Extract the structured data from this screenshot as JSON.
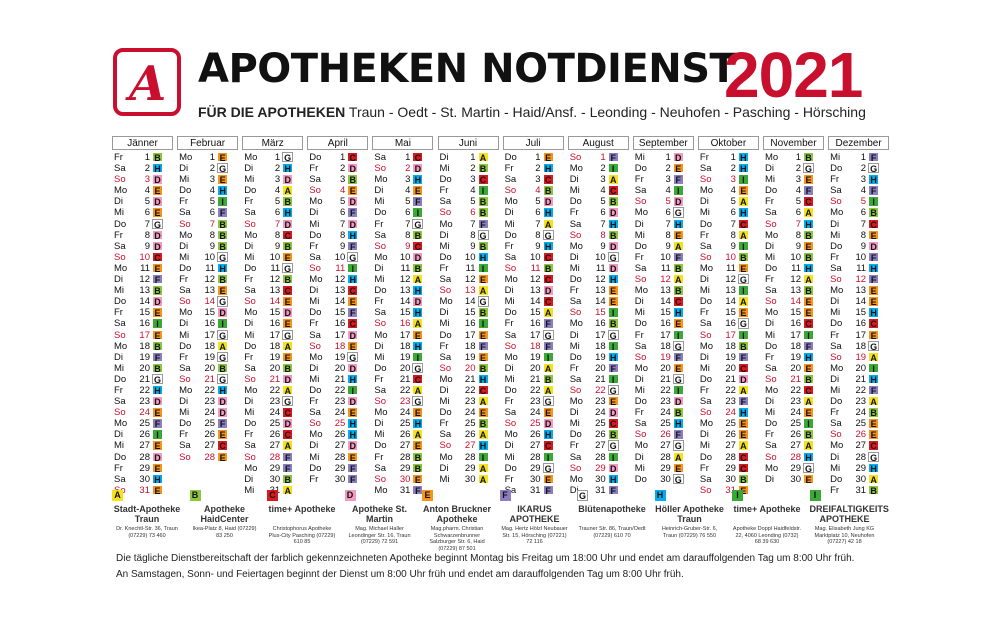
{
  "header": {
    "logo_glyph": "A",
    "title": "APOTHEKEN NOTDIENST",
    "year": "2021",
    "subtitle_bold": "FÜR DIE APOTHEKEN",
    "subtitle_rest": " Traun - Oedt - St. Martin - Haid/Ansf. - Leonding - Neuhofen - Pasching - Hörsching"
  },
  "colors": {
    "A": "#f5e31a",
    "B": "#8dc63f",
    "C": "#d71920",
    "D": "#f49ac1",
    "E": "#f7941d",
    "F": "#8b7fbf",
    "G": "#ffffff",
    "H": "#00aeef",
    "I": "#3aa935"
  },
  "weekday_names": [
    "Mo",
    "Di",
    "Mi",
    "Do",
    "Fr",
    "Sa",
    "So"
  ],
  "months": [
    {
      "name": "Jänner",
      "days": 31,
      "start": 4,
      "letters": "BHDEDEGDDCEFBDEIEBFBGHDEFIEDEHE"
    },
    {
      "name": "Februar",
      "days": 28,
      "start": 0,
      "letters": "EGEHIFBBBGHBEGDIGAGBGHDDFECE"
    },
    {
      "name": "März",
      "days": 31,
      "start": 0,
      "letters": "GHDABHDCBEGBCEDEGAEBDAGCDCAFFBA"
    },
    {
      "name": "April",
      "days": 30,
      "start": 3,
      "letters": "CDBEDFDHFGIHCEFCDEGDHIDEHHDEFF"
    },
    {
      "name": "Mai",
      "days": 31,
      "start": 5,
      "letters": "CDHEFIGBCDBAHDHAEHIGCAGEHAEBBEF"
    },
    {
      "name": "Juni",
      "days": 30,
      "start": 1,
      "letters": "ABCIBBFGBHIEAGBIEFEBHCAEBAHIAA"
    },
    {
      "name": "Juli",
      "days": 31,
      "start": 3,
      "letters": "EHCBDHAGHCBCDCAFGFIABAGEDHCIGEF"
    },
    {
      "name": "August",
      "days": 31,
      "start": 6,
      "letters": "FIACBDHBDGDHEEIBGIHFIGEDCBGIDHF"
    },
    {
      "name": "September",
      "days": 30,
      "start": 2,
      "letters": "DEFIDGHEAFBABCHEIGFEGIDBHFGAEG"
    },
    {
      "name": "Oktober",
      "days": 31,
      "start": 4,
      "letters": "HHIEAHCAIBEGIAEGIBFCDAFHEEACCBE"
    },
    {
      "name": "November",
      "days": 30,
      "start": 0,
      "letters": "BGEFCAHBEBHABEECIFHEBCAEIBAHGE"
    },
    {
      "name": "Dezember",
      "days": 31,
      "start": 2,
      "letters": "FGHFIBCEDFHFEEHCEGAIHFABEECGHAB"
    }
  ],
  "legend": [
    {
      "letter": "A",
      "name": "Stadt-Apotheke Traun",
      "addr": "Dr. Knechtl-Str. 36, Traun (07229) 73 460"
    },
    {
      "letter": "B",
      "name": "Apotheke HaidCenter",
      "addr": "Ikea-Platz 8, Haid (07229) 83 250"
    },
    {
      "letter": "C",
      "name": "time+ Apotheke",
      "addr": "Christophorus Apotheke Plus-City Pasching (07229) 610 85"
    },
    {
      "letter": "D",
      "name": "Apotheke St. Martin",
      "addr": "Mag. Michael Haller Leondinger Str. 16, Traun (07229) 72 591"
    },
    {
      "letter": "E",
      "name": "Anton Bruckner Apotheke",
      "addr": "Mag.pharm. Christian Schwarzenbrunner Salzburger Str. 6, Haid (07229) 87 501"
    },
    {
      "letter": "F",
      "name": "IKARUS APOTHEKE",
      "addr": "Mag. Hertz Hölzl Neubauer Str. 15, Hörsching (07221) 72 116"
    },
    {
      "letter": "G",
      "name": "Blütenapotheke",
      "addr": "Trauner Str. 86, Traun/Oedt (07229) 610 70"
    },
    {
      "letter": "H",
      "name": "Höller Apotheke Traun",
      "addr": "Heinrich-Gruber-Str. 6, Traun (07229) 76 550"
    },
    {
      "letter": "I",
      "name": "time+ Apotheke",
      "addr": "Apotheke Doppl Haidfeldstr. 22, 4060 Leonding (0732) 68 39 630"
    },
    {
      "letter": "I",
      "name": "DREIFALTIGKEITS APOTHEKE",
      "addr": "Mag. Elisabeth Jung KG Marktplatz 10, Neuhofen (07227) 42 18"
    }
  ],
  "footer": {
    "line1": "Die tägliche Dienstbereitschaft der farblich gekennzeichneten Apotheke beginnt Montag bis Freitag um 18:00 Uhr und endet am darauffolgenden Tag um 8:00 Uhr früh.",
    "line2": "An Samstagen, Sonn- und Feiertagen beginnt der Dienst um 8:00 Uhr früh und endet am darauffolgenden Tag um 8:00 Uhr früh."
  }
}
